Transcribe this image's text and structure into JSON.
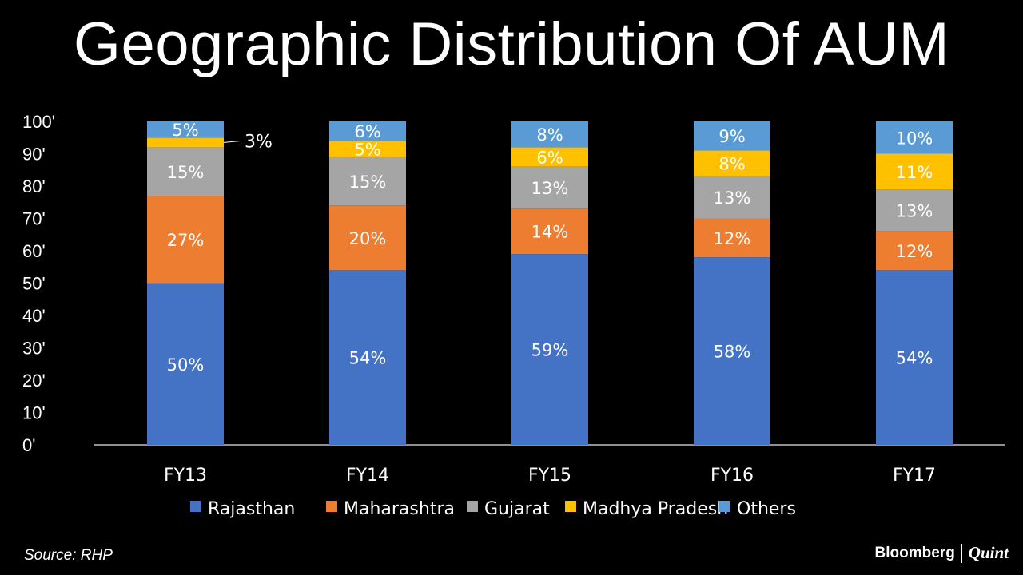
{
  "title": "Geographic Distribution Of AUM",
  "source": "Source: RHP",
  "brand": {
    "primary": "Bloomberg",
    "secondary": "Quint"
  },
  "chart_data": {
    "type": "bar",
    "stacked": true,
    "categories": [
      "FY13",
      "FY14",
      "FY15",
      "FY16",
      "FY17"
    ],
    "ylim": [
      0,
      100
    ],
    "yticks": [
      "0'",
      "10'",
      "20'",
      "30'",
      "40'",
      "50'",
      "60'",
      "70'",
      "80'",
      "90'",
      "100'"
    ],
    "legend_position": "bottom",
    "series": [
      {
        "name": "Rajasthan",
        "color": "#4472C4",
        "values": [
          50,
          54,
          59,
          58,
          54
        ],
        "labels": [
          "50%",
          "54%",
          "59%",
          "58%",
          "54%"
        ]
      },
      {
        "name": "Maharashtra",
        "color": "#ED7D31",
        "values": [
          27,
          20,
          14,
          12,
          12
        ],
        "labels": [
          "27%",
          "20%",
          "14%",
          "12%",
          "12%"
        ]
      },
      {
        "name": "Gujarat",
        "color": "#A5A5A5",
        "values": [
          15,
          15,
          13,
          13,
          13
        ],
        "labels": [
          "15%",
          "15%",
          "13%",
          "13%",
          "13%"
        ]
      },
      {
        "name": "Madhya Pradesh",
        "color": "#FFC000",
        "values": [
          3,
          5,
          6,
          8,
          11
        ],
        "labels": [
          "3%",
          "5%",
          "6%",
          "8%",
          "11%"
        ]
      },
      {
        "name": "Others",
        "color": "#5B9BD5",
        "values": [
          5,
          6,
          8,
          9,
          10
        ],
        "labels": [
          "5%",
          "6%",
          "8%",
          "9%",
          "10%"
        ]
      }
    ]
  }
}
